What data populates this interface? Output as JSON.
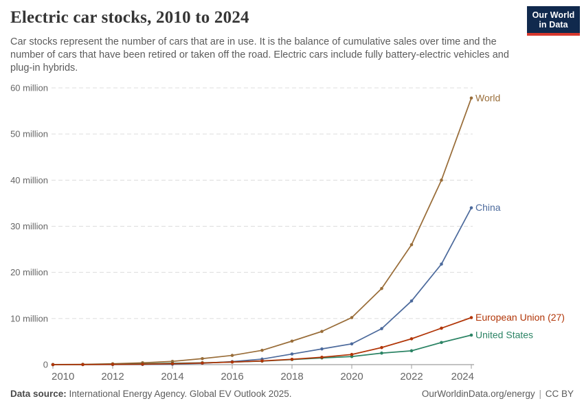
{
  "header": {
    "title": "Electric car stocks, 2010 to 2024",
    "subtitle": "Car stocks represent the number of cars that are in use. It is the balance of cumulative sales over time and the number of cars that have been retired or taken off the road. Electric cars include fully battery-electric vehicles and plug-in hybrids.",
    "logo_line1": "Our World",
    "logo_line2": "in Data"
  },
  "chart_data": {
    "type": "line",
    "title": "Electric car stocks, 2010 to 2024",
    "unit": "million cars",
    "x": [
      2010,
      2011,
      2012,
      2013,
      2014,
      2015,
      2016,
      2017,
      2018,
      2019,
      2020,
      2021,
      2022,
      2023,
      2024
    ],
    "x_tick_labels": [
      "2010",
      "2012",
      "2014",
      "2016",
      "2018",
      "2020",
      "2022",
      "2024"
    ],
    "y_ticks": [
      {
        "value": 0,
        "label": "0"
      },
      {
        "value": 10,
        "label": "10 million"
      },
      {
        "value": 20,
        "label": "20 million"
      },
      {
        "value": 30,
        "label": "30 million"
      },
      {
        "value": 40,
        "label": "40 million"
      },
      {
        "value": 50,
        "label": "50 million"
      },
      {
        "value": 60,
        "label": "60 million"
      }
    ],
    "xlim": [
      2010,
      2024
    ],
    "ylim": [
      0,
      60
    ],
    "grid": "horizontal-dashed",
    "legend_position": "labels-at-line-ends-right",
    "series": [
      {
        "name": "World",
        "color": "#996D39",
        "values": [
          0.02,
          0.06,
          0.18,
          0.4,
          0.7,
          1.3,
          2.0,
          3.1,
          5.1,
          7.2,
          10.2,
          16.5,
          26.0,
          40.0,
          57.8
        ]
      },
      {
        "name": "China",
        "color": "#4C6A9C",
        "values": [
          0.0,
          0.01,
          0.02,
          0.03,
          0.1,
          0.3,
          0.65,
          1.2,
          2.3,
          3.4,
          4.5,
          7.8,
          13.8,
          21.8,
          34.0
        ]
      },
      {
        "name": "European Union (27)",
        "color": "#B13507",
        "values": [
          0.0,
          0.02,
          0.05,
          0.1,
          0.2,
          0.35,
          0.55,
          0.8,
          1.15,
          1.6,
          2.2,
          3.7,
          5.6,
          7.9,
          10.2
        ]
      },
      {
        "name": "United States",
        "color": "#2C8465",
        "values": [
          0.0,
          0.02,
          0.07,
          0.17,
          0.29,
          0.4,
          0.56,
          0.76,
          1.1,
          1.45,
          1.75,
          2.5,
          3.0,
          4.8,
          6.4
        ]
      }
    ],
    "style": {
      "gridline_color": "#dcdcdc",
      "axis_color": "#9e9e9e",
      "tick_label_color": "#666666"
    }
  },
  "footer": {
    "source_label": "Data source:",
    "source_text": " International Energy Agency. Global EV Outlook 2025.",
    "link": "OurWorldinData.org/energy",
    "separator": "|",
    "license": "CC BY"
  }
}
